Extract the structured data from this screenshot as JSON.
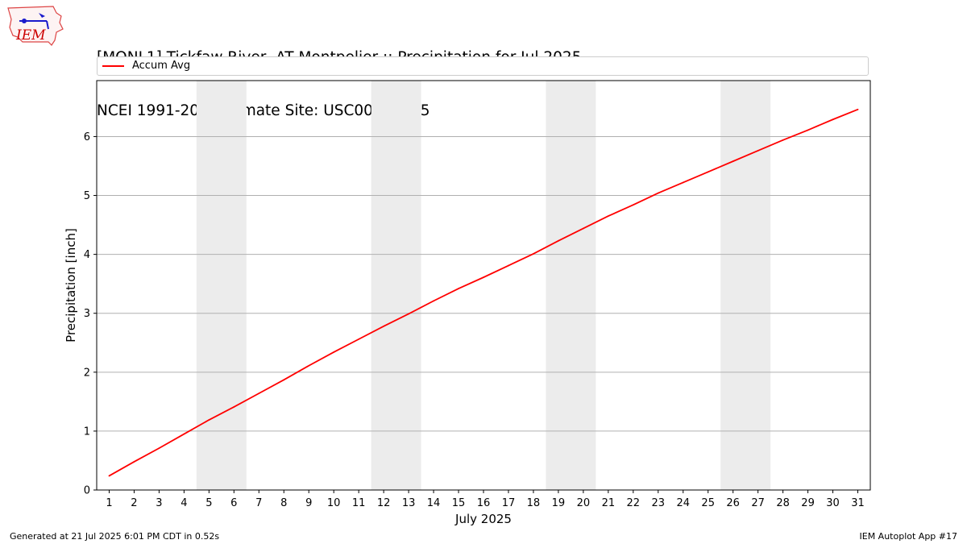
{
  "header": {
    "title_line1": "[MONL1] Tickfaw River  AT Montpelier :: Precipitation for Jul 2025",
    "title_line2": "NCEI 1991-2020 Climate Site: USC00160205"
  },
  "logo": {
    "text": "IEM",
    "icon": "iem-logo-icon",
    "color": "#cc0000"
  },
  "footer": {
    "left": "Generated at 21 Jul 2025 6:01 PM CDT in 0.52s",
    "right": "IEM Autoplot App #17"
  },
  "chart_data": {
    "type": "line",
    "title": "[MONL1] Tickfaw River  AT Montpelier :: Precipitation for Jul 2025",
    "xlabel": "July 2025",
    "ylabel": "Precipitation [inch]",
    "x": [
      1,
      2,
      3,
      4,
      5,
      6,
      7,
      8,
      9,
      10,
      11,
      12,
      13,
      14,
      15,
      16,
      17,
      18,
      19,
      20,
      21,
      22,
      23,
      24,
      25,
      26,
      27,
      28,
      29,
      30,
      31
    ],
    "xticklabels": [
      "1",
      "2",
      "3",
      "4",
      "5",
      "6",
      "7",
      "8",
      "9",
      "10",
      "11",
      "12",
      "13",
      "14",
      "15",
      "16",
      "17",
      "18",
      "19",
      "20",
      "21",
      "22",
      "23",
      "24",
      "25",
      "26",
      "27",
      "28",
      "29",
      "30",
      "31"
    ],
    "xlim": [
      0.5,
      31.5
    ],
    "ylim": [
      0,
      6.95
    ],
    "yticks": [
      0,
      1,
      2,
      3,
      4,
      5,
      6
    ],
    "grid": "horizontal",
    "legend_position": "top",
    "weekend_shading": [
      [
        4.5,
        6.5
      ],
      [
        11.5,
        13.5
      ],
      [
        18.5,
        20.5
      ],
      [
        25.5,
        27.5
      ]
    ],
    "series": [
      {
        "name": "Accum Avg",
        "color": "#ff0000",
        "values": [
          0.24,
          0.48,
          0.71,
          0.95,
          1.19,
          1.41,
          1.64,
          1.87,
          2.11,
          2.34,
          2.56,
          2.78,
          2.99,
          3.21,
          3.42,
          3.61,
          3.81,
          4.01,
          4.23,
          4.44,
          4.65,
          4.84,
          5.04,
          5.22,
          5.4,
          5.58,
          5.76,
          5.94,
          6.11,
          6.29,
          6.46
        ]
      }
    ],
    "colors": {
      "shade": "#ececec",
      "grid": "#b0b0b0"
    }
  }
}
